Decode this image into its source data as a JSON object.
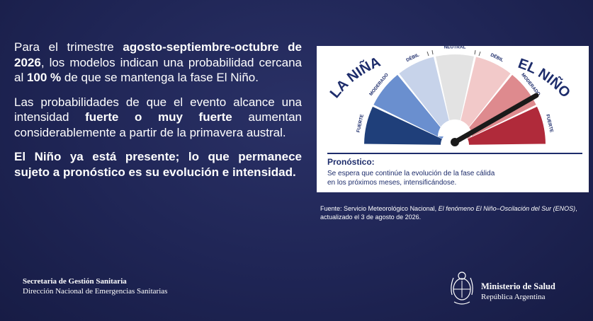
{
  "main": {
    "p1": {
      "t1": "Para el trimestre ",
      "t2": "agosto-septiembre-octubre de 2026",
      "t3": ", los modelos indican una probabilidad cercana al ",
      "t4": "100 %",
      "t5": " de que se mantenga la fase El Niño."
    },
    "p2": {
      "t1": "Las probabilidades de que el evento alcance una intensidad ",
      "t2": "fuerte o muy fuerte",
      "t3": " aumentan considerablemente a partir de la primavera austral."
    },
    "p3": "El Niño ya está presente; lo que permanece sujeto a pronóstico es su evolución e intensidad."
  },
  "gauge": {
    "la_nina": "LA NIÑA",
    "el_nino": "EL NIÑO",
    "fuerte_left": "FUERTE",
    "moderado_left": "MODERADO",
    "debil_left": "DÉBIL",
    "neutral": "NEUTRAL",
    "debil_right": "DÉBIL",
    "moderado_right": "MODERADO",
    "fuerte_right": "FUERTE",
    "colors": [
      "#1f3f7a",
      "#6a8fcf",
      "#c7d3ea",
      "#e3e3e3",
      "#f2c9c9",
      "#de8a8e",
      "#b02a3a"
    ],
    "needle_color": "#1a1a1a"
  },
  "pronostico": {
    "title": "Pronóstico:",
    "text_l1": "Se espera que continúe la evolución de la fase cálida",
    "text_l2": "en los próximos meses, intensificándose."
  },
  "source": {
    "t1": "Fuente: Servicio Meteorológico Nacional, ",
    "t2": "El fenómeno El Niño–Oscilación del Sur (ENOS)",
    "t3": ", actualizado el 3 de agosto de 2026."
  },
  "footer": {
    "left_l1": "Secretaria de Gestión Sanitaria",
    "left_l2": "Dirección Nacional de Emergencias Sanitarias",
    "right_l1": "Ministerio de Salud",
    "right_l2": "República Argentina"
  }
}
